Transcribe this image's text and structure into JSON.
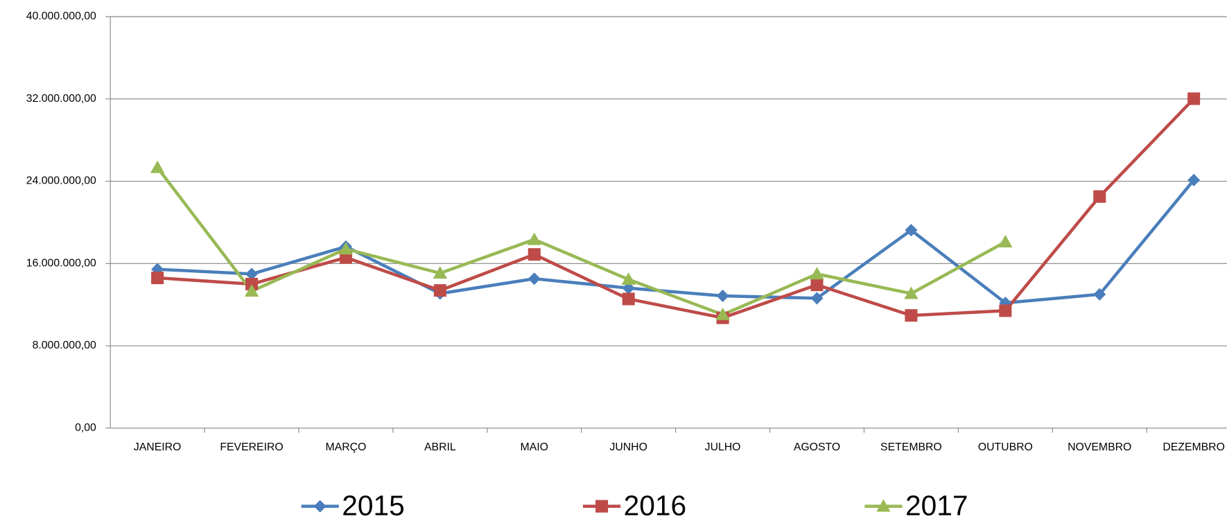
{
  "chart_data": {
    "type": "line",
    "categories": [
      "JANEIRO",
      "FEVEREIRO",
      "MARÇO",
      "ABRIL",
      "MAIO",
      "JUNHO",
      "JULHO",
      "AGOSTO",
      "SETEMBRO",
      "OUTUBRO",
      "NOVEMBRO",
      "DEZEMBRO"
    ],
    "series": [
      {
        "name": "2015",
        "color": "#4a7ebb",
        "marker": "diamond",
        "values": [
          15440000,
          14980000,
          17640000,
          13080000,
          14520000,
          13610000,
          12850000,
          12620000,
          19240000,
          12170000,
          13000000,
          24110000
        ]
      },
      {
        "name": "2016",
        "color": "#be4b48",
        "marker": "square",
        "values": [
          14600000,
          14000000,
          16580000,
          13380000,
          16880000,
          12550000,
          10720000,
          13920000,
          10950000,
          11410000,
          22510000,
          32020000
        ]
      },
      {
        "name": "2017",
        "color": "#98b954",
        "marker": "triangle",
        "values": [
          25320000,
          13310000,
          17410000,
          15060000,
          18330000,
          14450000,
          11030000,
          14980000,
          13080000,
          18100000,
          null,
          null
        ]
      }
    ],
    "ylim": [
      0,
      40000000
    ],
    "yticks": [
      {
        "value": 0,
        "label": "0,00"
      },
      {
        "value": 8000000,
        "label": "8.000.000,00"
      },
      {
        "value": 16000000,
        "label": "16.000.000,00"
      },
      {
        "value": 24000000,
        "label": "24.000.000,00"
      },
      {
        "value": 32000000,
        "label": "32.000.000,00"
      },
      {
        "value": 40000000,
        "label": "40.000.000,00"
      }
    ],
    "grid": true,
    "legend": "bottom"
  }
}
